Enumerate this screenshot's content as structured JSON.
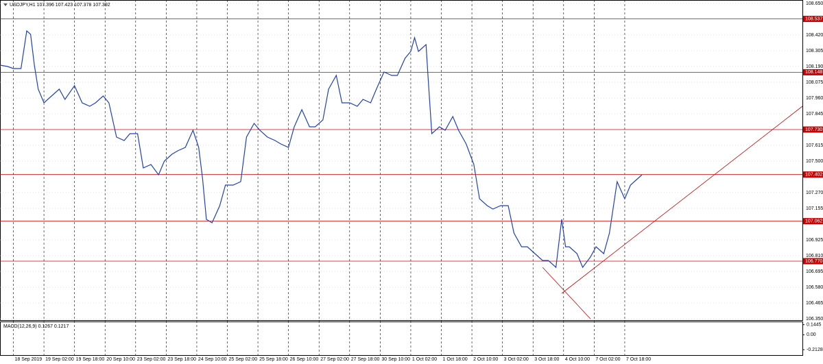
{
  "chart_data": {
    "type": "line",
    "title": "USDJPY,H1  107.396 107.423 107.378 107.392",
    "color": "#1f3fbf",
    "x": [
      0,
      4,
      7,
      11,
      14,
      16,
      18,
      20,
      23,
      27,
      31,
      34,
      39,
      43,
      47,
      50,
      54,
      57,
      61,
      65,
      68,
      72,
      75,
      79,
      83,
      86,
      90,
      93,
      97,
      101,
      104,
      106,
      108,
      111,
      115,
      118,
      122,
      126,
      129,
      133,
      136,
      140,
      144,
      147,
      151,
      154,
      158,
      162,
      165,
      169,
      172,
      176,
      179,
      183,
      187,
      190,
      194,
      197,
      201,
      205,
      208,
      212,
      215,
      217,
      219,
      223,
      224,
      226,
      230,
      233,
      237,
      240,
      244,
      248,
      251,
      255,
      258,
      262,
      266,
      269,
      273,
      276,
      280,
      284,
      287,
      291,
      294,
      296,
      298,
      302,
      305,
      309,
      312,
      316,
      319,
      323,
      327,
      330,
      336
    ],
    "values": [
      108.2,
      108.19,
      108.175,
      108.175,
      108.45,
      108.425,
      108.2,
      108.025,
      107.925,
      107.975,
      108.025,
      107.95,
      108.05,
      107.925,
      107.9,
      107.925,
      107.975,
      107.925,
      107.675,
      107.65,
      107.7,
      107.7,
      107.45,
      107.475,
      107.4,
      107.5,
      107.55,
      107.575,
      107.6,
      107.725,
      107.6,
      107.375,
      107.075,
      107.05,
      107.175,
      107.325,
      107.325,
      107.35,
      107.675,
      107.775,
      107.725,
      107.675,
      107.65,
      107.625,
      107.6,
      107.75,
      107.875,
      107.75,
      107.75,
      107.8,
      108.025,
      108.125,
      107.925,
      107.925,
      107.9,
      107.95,
      107.925,
      108.025,
      108.15,
      108.125,
      108.125,
      108.25,
      108.3,
      108.4,
      108.3,
      108.35,
      108.125,
      107.7,
      107.75,
      107.725,
      107.825,
      107.725,
      107.625,
      107.475,
      107.225,
      107.175,
      107.15,
      107.175,
      107.175,
      106.975,
      106.875,
      106.875,
      106.825,
      106.775,
      106.775,
      106.725,
      107.075,
      106.875,
      106.875,
      106.825,
      106.725,
      106.8,
      106.875,
      106.825,
      106.975,
      107.35,
      107.225,
      107.325,
      107.4
    ],
    "xlim": [
      0,
      420
    ],
    "xticks": [
      {
        "value": 7,
        "label": "18 Sep 2019"
      },
      {
        "value": 23,
        "label": "19 Sep 02:00"
      },
      {
        "value": 39,
        "label": "19 Sep 18:00"
      },
      {
        "value": 55,
        "label": "20 Sep 10:00"
      },
      {
        "value": 71,
        "label": "23 Sep 02:00"
      },
      {
        "value": 87,
        "label": "23 Sep 18:00"
      },
      {
        "value": 103,
        "label": "24 Sep 10:00"
      },
      {
        "value": 119,
        "label": "25 Sep 02:00"
      },
      {
        "value": 135,
        "label": "25 Sep 18:00"
      },
      {
        "value": 151,
        "label": "26 Sep 10:00"
      },
      {
        "value": 167,
        "label": "27 Sep 02:00"
      },
      {
        "value": 183,
        "label": "27 Sep 18:00"
      },
      {
        "value": 199,
        "label": "30 Sep 10:00"
      },
      {
        "value": 215,
        "label": "1 Oct 02:00"
      },
      {
        "value": 231,
        "label": "1 Oct 18:00"
      },
      {
        "value": 247,
        "label": "2 Oct 10:00"
      },
      {
        "value": 263,
        "label": "3 Oct 02:00"
      },
      {
        "value": 279,
        "label": "3 Oct 18:00"
      },
      {
        "value": 295,
        "label": "4 Oct 10:00"
      },
      {
        "value": 311,
        "label": "7 Oct 02:00"
      },
      {
        "value": 327,
        "label": "7 Oct 18:00"
      }
    ],
    "ylim": [
      106.34,
      108.675
    ],
    "yticks": [
      {
        "value": 108.65,
        "label": "108.650"
      },
      {
        "value": 108.42,
        "label": "108.420"
      },
      108.305,
      {
        "value": 108.19,
        "label": "108.190"
      },
      108.075,
      {
        "value": 107.96,
        "label": "107.960"
      },
      107.845,
      107.615,
      {
        "value": 107.5,
        "label": "107.500"
      },
      {
        "value": 107.27,
        "label": "107.270"
      },
      107.155,
      106.925,
      {
        "value": 106.81,
        "label": "106.810"
      },
      106.695,
      {
        "value": 106.58,
        "label": "106.580"
      },
      106.465,
      {
        "value": 106.35,
        "label": "106.350"
      }
    ],
    "grid": true,
    "levels": {
      "color": "#cc0000",
      "values": [
        108.537,
        108.148,
        107.73,
        107.402,
        107.062,
        106.77
      ],
      "value_labels": [
        "108.537",
        "108.148",
        "107.730",
        "107.402",
        "107.062",
        "106.770"
      ]
    },
    "trendlines": [
      {
        "x": [
          294,
          420
        ],
        "y": [
          106.535,
          107.9
        ]
      },
      {
        "x": [
          284,
          309
        ],
        "y": [
          106.725,
          106.35
        ]
      }
    ],
    "macd": {
      "title": "MACD(12,26,9) 0.1267 0.1217",
      "ylim": [
        -0.29,
        0.19
      ],
      "yticks": [
        0.1445,
        {
          "value": 0,
          "label": "0.00"
        },
        -0.2128
      ]
    }
  }
}
